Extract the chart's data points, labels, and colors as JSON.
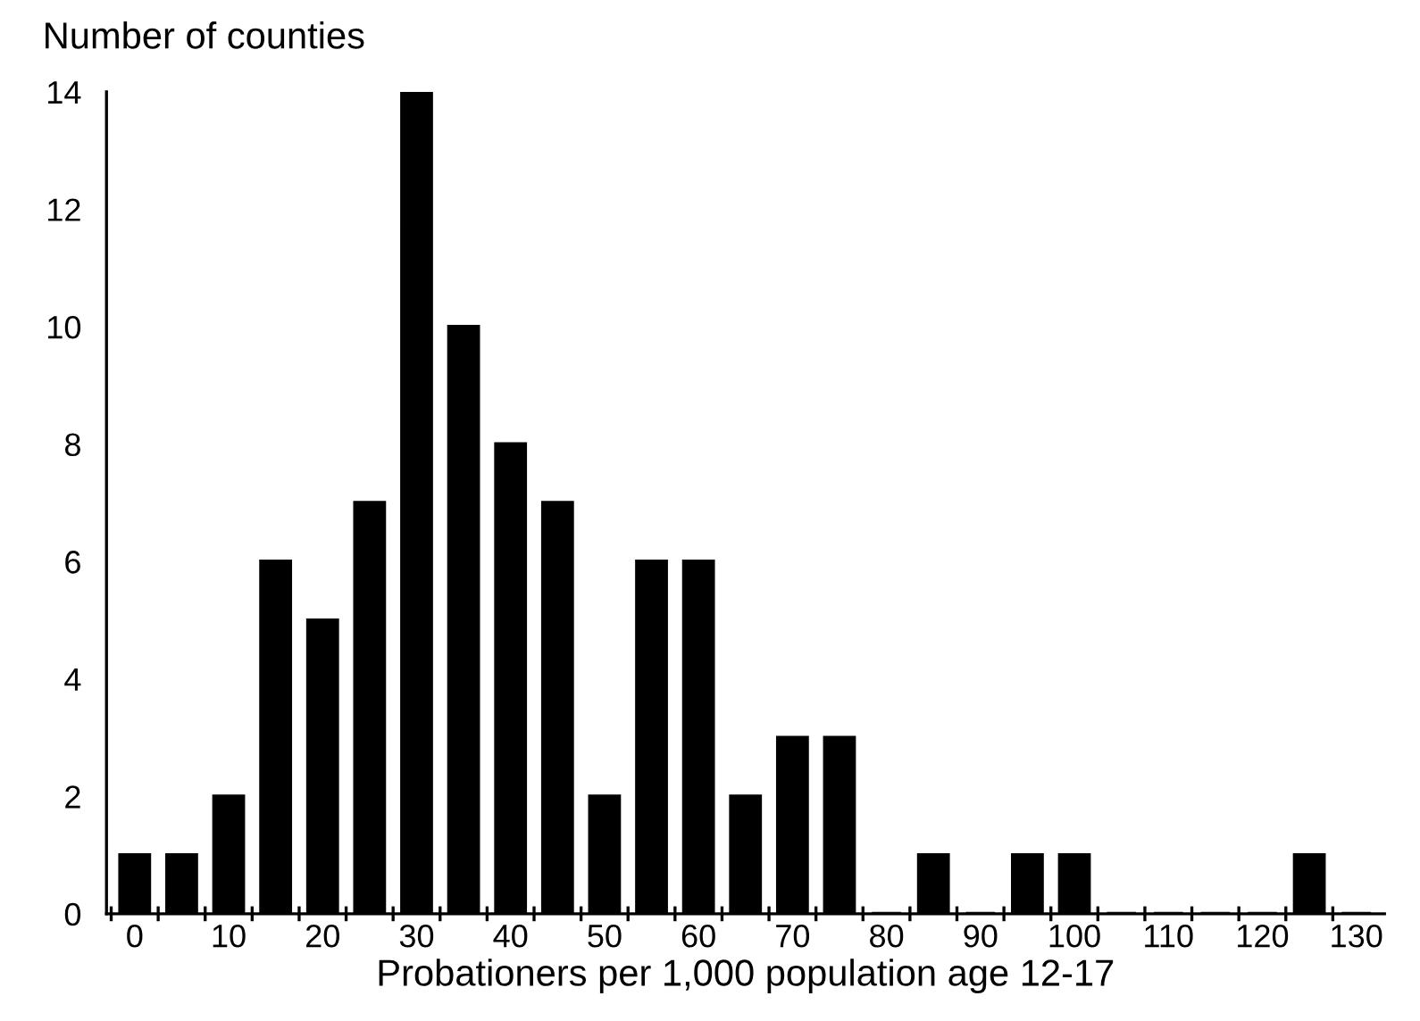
{
  "chart_data": {
    "type": "bar",
    "xlabel": "Probationers per 1,000 population age 12-17",
    "ylabel": "Number of counties",
    "categories": [
      "0",
      null,
      "10",
      null,
      "20",
      null,
      "30",
      null,
      "40",
      null,
      "50",
      null,
      "60",
      null,
      "70",
      null,
      "80",
      null,
      "90",
      null,
      "100",
      null,
      "110",
      null,
      "120",
      null,
      "130"
    ],
    "values": [
      1,
      1,
      2,
      6,
      5,
      7,
      14,
      10,
      8,
      7,
      2,
      6,
      6,
      2,
      3,
      3,
      0,
      1,
      0,
      1,
      1,
      0,
      0,
      0,
      0,
      1,
      0
    ],
    "color": "#000000",
    "ylim": [
      0,
      14
    ],
    "yticks": [
      0,
      2,
      4,
      6,
      8,
      10,
      12,
      14
    ],
    "grid": false,
    "legend": false
  }
}
